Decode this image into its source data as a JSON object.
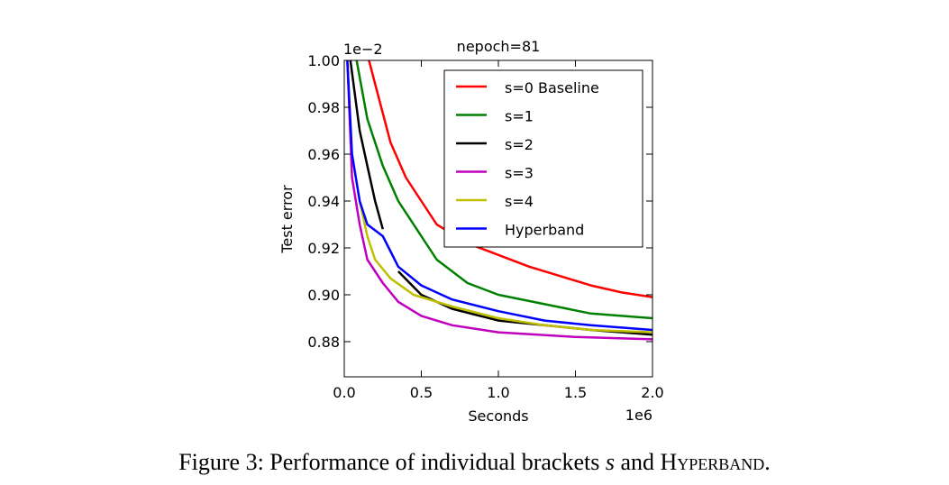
{
  "chart_data": {
    "type": "line",
    "title": "nepoch=81",
    "x_label": "Seconds",
    "y_label": "Test error",
    "x_offset_label": "1e6",
    "y_offset_label": "1e−2",
    "xlim": [
      0,
      2.0
    ],
    "ylim": [
      0.865,
      1.0
    ],
    "xticks": [
      {
        "value": 0,
        "label": "0.0"
      },
      0.5,
      {
        "value": 1,
        "label": "1.0"
      },
      1.5,
      {
        "value": 2,
        "label": "2.0"
      }
    ],
    "yticks": [
      0.88,
      {
        "value": 0.9,
        "label": "0.90"
      },
      0.92,
      0.94,
      0.96,
      0.98,
      {
        "value": 1,
        "label": "1.00"
      }
    ],
    "legend": "upper right",
    "series": [
      {
        "name": "s=0 Baseline",
        "color": "#ff0000",
        "x": [
          0.16,
          0.2,
          0.3,
          0.4,
          0.5,
          0.6,
          0.8,
          1.0,
          1.2,
          1.4,
          1.6,
          1.8,
          2.0
        ],
        "values": [
          1.0,
          0.99,
          0.965,
          0.95,
          0.94,
          0.93,
          0.922,
          0.917,
          0.912,
          0.908,
          0.904,
          0.901,
          0.899
        ]
      },
      {
        "name": "s=1",
        "color": "#008000",
        "x": [
          0.08,
          0.15,
          0.25,
          0.35,
          0.5,
          0.6,
          0.8,
          1.0,
          1.3,
          1.6,
          2.0
        ],
        "values": [
          1.0,
          0.975,
          0.955,
          0.94,
          0.925,
          0.915,
          0.905,
          0.9,
          0.896,
          0.892,
          0.89
        ]
      },
      {
        "name": "s=2",
        "color": "#000000",
        "x": [
          0.04,
          0.1,
          0.15,
          0.2,
          0.25,
          0.3,
          0.35,
          0.5,
          0.7,
          1.0,
          1.3,
          1.6,
          2.0
        ],
        "values": [
          1.0,
          0.97,
          0.955,
          0.94,
          0.928,
          null,
          0.91,
          0.9,
          0.894,
          0.889,
          0.887,
          0.885,
          0.883
        ]
      },
      {
        "name": "s=3",
        "color": "#bf00bf",
        "x": [
          0.02,
          0.05,
          0.1,
          0.15,
          0.25,
          0.35,
          0.5,
          0.7,
          1.0,
          1.5,
          2.0
        ],
        "values": [
          1.0,
          0.95,
          0.93,
          0.915,
          0.905,
          0.897,
          0.891,
          0.887,
          0.884,
          0.882,
          0.881
        ]
      },
      {
        "name": "s=4",
        "color": "#bfbf00",
        "x": [
          0.1,
          0.15,
          0.2,
          0.3,
          0.45,
          0.7,
          1.0,
          1.3,
          1.6,
          2.0
        ],
        "values": [
          0.94,
          0.925,
          0.915,
          0.907,
          0.9,
          0.895,
          0.89,
          0.887,
          0.885,
          0.884
        ]
      },
      {
        "name": "Hyperband",
        "color": "#0000ff",
        "x": [
          0.02,
          0.05,
          0.1,
          0.15,
          0.25,
          0.35,
          0.5,
          0.7,
          1.0,
          1.3,
          1.6,
          2.0
        ],
        "values": [
          1.0,
          0.96,
          0.94,
          0.93,
          0.925,
          0.912,
          0.904,
          0.898,
          0.893,
          0.889,
          0.887,
          0.885
        ]
      }
    ]
  },
  "caption": [
    "Figure 3: Performance of individual brackets",
    "s",
    "and",
    "Hyperband",
    "."
  ]
}
